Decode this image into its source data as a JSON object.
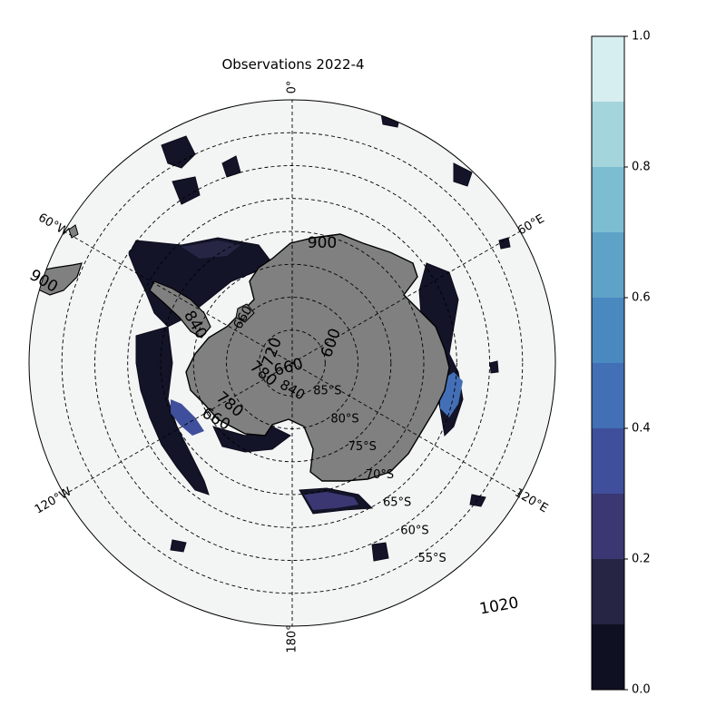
{
  "title": "Observations 2022-4",
  "map": {
    "projection": "south polar stereographic",
    "ocean_color": "#f3f4f4",
    "land_color": "#808080",
    "gridline_style": "dashed",
    "longitude_labels": [
      {
        "text": "0°",
        "lon": 0
      },
      {
        "text": "60°E",
        "lon": 60
      },
      {
        "text": "120°E",
        "lon": 120
      },
      {
        "text": "180°",
        "lon": 180
      },
      {
        "text": "120°W",
        "lon": -120
      },
      {
        "text": "60°W",
        "lon": -60
      }
    ],
    "latitude_labels": [
      {
        "text": "85°S",
        "lat": -85
      },
      {
        "text": "80°S",
        "lat": -80
      },
      {
        "text": "75°S",
        "lat": -75
      },
      {
        "text": "70°S",
        "lat": -70
      },
      {
        "text": "65°S",
        "lat": -65
      },
      {
        "text": "60°S",
        "lat": -60
      },
      {
        "text": "55°S",
        "lat": -55
      }
    ],
    "contour_labels": [
      "900",
      "600",
      "720",
      "660",
      "780",
      "840",
      "780",
      "660",
      "840",
      "660",
      "900",
      "1020"
    ]
  },
  "colorbar": {
    "colors": [
      "#0f1022",
      "#262543",
      "#3b3772",
      "#3f4f9c",
      "#436fb6",
      "#4a88c0",
      "#5ea2c8",
      "#7dbdd2",
      "#a5d5dc",
      "#d7eef0"
    ],
    "ticks": [
      "0.0",
      "0.2",
      "0.4",
      "0.6",
      "0.8",
      "1.0"
    ],
    "min": 0,
    "max": 1
  }
}
